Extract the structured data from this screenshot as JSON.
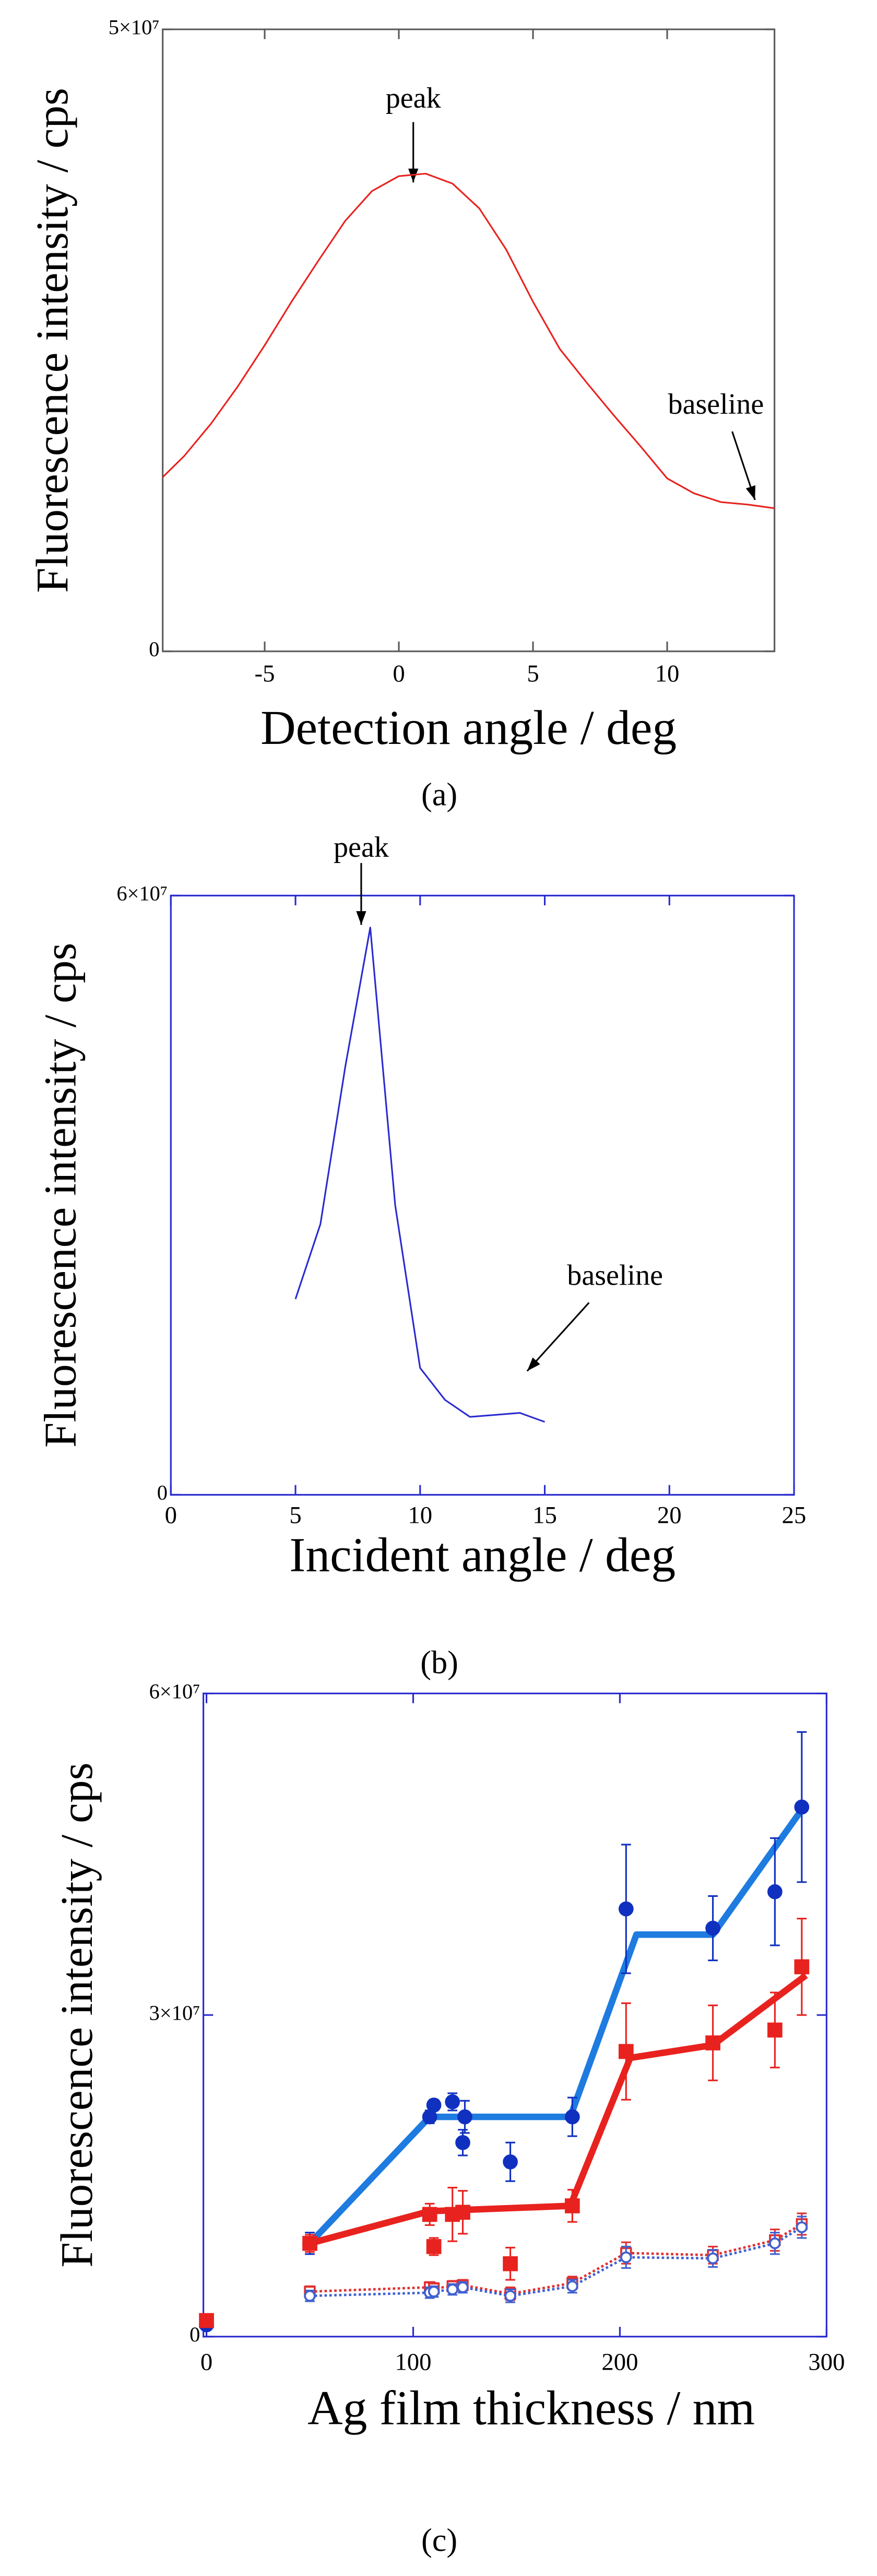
{
  "chart_data": [
    {
      "type": "line",
      "caption": "(a)",
      "x_label": "Detection angle / deg",
      "y_label": "Fluorescence intensity / cps",
      "annotations": [
        "peak",
        "baseline"
      ],
      "xlim": [
        -8.8,
        14
      ],
      "xticks": [
        -5,
        0,
        5,
        10
      ],
      "ylim": [
        0,
        50000000
      ],
      "yticks": [
        0,
        {
          "value": 50000000,
          "label": "5×10⁷"
        }
      ],
      "series": [
        {
          "color": "#e8221e",
          "line": "solid",
          "marker": null,
          "x": [
            -8.8,
            -8,
            -7,
            -6,
            -5,
            -4,
            -3,
            -2,
            -1,
            0,
            1,
            2,
            3,
            4,
            5,
            6,
            7,
            8,
            9,
            10,
            11,
            12,
            13,
            14
          ],
          "values": [
            14000000,
            15700000,
            18300000,
            21300000,
            24600000,
            28100000,
            31400000,
            34600000,
            37000000,
            38200000,
            38400000,
            37600000,
            35600000,
            32300000,
            28100000,
            24300000,
            21600000,
            19000000,
            16500000,
            13900000,
            12700000,
            12000000,
            11800000,
            11500000
          ]
        }
      ]
    },
    {
      "type": "line",
      "caption": "(b)",
      "x_label": "Incident angle / deg",
      "y_label": "Fluorescence intensity / cps",
      "annotations": [
        "peak",
        "baseline"
      ],
      "xlim": [
        0,
        25
      ],
      "xticks": [
        0,
        5,
        10,
        15,
        20,
        25
      ],
      "ylim": [
        0,
        60000000
      ],
      "yticks": [
        0,
        {
          "value": 60000000,
          "label": "6×10⁷"
        }
      ],
      "series": [
        {
          "color": "#2a2ad0",
          "line": "solid",
          "marker": null,
          "x": [
            5,
            6,
            7,
            8,
            9,
            10,
            11,
            12,
            13,
            14,
            15
          ],
          "values": [
            19600000,
            27100000,
            42900000,
            56800000,
            29000000,
            12700000,
            9500000,
            7800000,
            8000000,
            8200000,
            7300000
          ]
        }
      ]
    },
    {
      "type": "line",
      "caption": "(c)",
      "x_label": "Ag film thickness / nm",
      "y_label": "Fluorescence intensity / cps",
      "xlim": [
        -1.5,
        300
      ],
      "xticks": [
        0,
        100,
        200,
        300
      ],
      "ylim": [
        0,
        60000000
      ],
      "yticks": [
        0,
        {
          "value": 30000000,
          "label": "3×10⁷"
        },
        {
          "value": 60000000,
          "label": "6×10⁷"
        }
      ],
      "series": [
        {
          "color": "#1e7be0",
          "line": "solid",
          "marker": null,
          "x": [
            50,
            108,
            176,
            208,
            245,
            290
          ],
          "values": [
            8700000,
            20500000,
            20500000,
            37500000,
            37500000,
            49700000
          ]
        },
        {
          "color": "#e8221e",
          "line": "solid",
          "marker": null,
          "x": [
            50,
            108,
            176,
            205,
            245,
            290
          ],
          "values": [
            8700000,
            11700000,
            12200000,
            26000000,
            27200000,
            33700000
          ]
        },
        {
          "color": "#1030c0",
          "line": null,
          "marker": "circle",
          "x": [
            0,
            50,
            108,
            110,
            119,
            124,
            125,
            147,
            177,
            203,
            245,
            275,
            288
          ],
          "values": [
            1100000,
            8700000,
            20500000,
            21600000,
            21900000,
            18100000,
            20500000,
            16300000,
            20500000,
            39900000,
            38100000,
            41500000,
            49400000
          ],
          "errors": [
            null,
            1000000,
            600000,
            500000,
            800000,
            1200000,
            1500000,
            1800000,
            1800000,
            6000000,
            3000000,
            5000000,
            7000000
          ]
        },
        {
          "color": "#e8221e",
          "line": null,
          "marker": "square",
          "x": [
            0,
            50,
            108,
            110,
            119,
            124,
            147,
            177,
            203,
            245,
            275,
            288
          ],
          "values": [
            1500000,
            8700000,
            11400000,
            8400000,
            11400000,
            11600000,
            6800000,
            12200000,
            26600000,
            27400000,
            28600000,
            34500000
          ],
          "errors": [
            null,
            800000,
            1000000,
            800000,
            2500000,
            2000000,
            1500000,
            1500000,
            4500000,
            3500000,
            3500000,
            4500000
          ]
        },
        {
          "color": "#e03030",
          "line": "dotted",
          "marker": "open-square",
          "x": [
            50,
            108,
            110,
            119,
            124,
            147,
            177,
            203,
            245,
            275,
            288
          ],
          "values": [
            4200000,
            4600000,
            4500000,
            4700000,
            4800000,
            4000000,
            5000000,
            7800000,
            7600000,
            9000000,
            10500000
          ],
          "errors": [
            500000,
            500000,
            500000,
            500000,
            500000,
            600000,
            600000,
            1000000,
            800000,
            1000000,
            1000000
          ]
        },
        {
          "color": "#4060d0",
          "line": "dotted",
          "marker": "open-circle",
          "x": [
            50,
            108,
            110,
            119,
            124,
            147,
            177,
            203,
            245,
            275,
            288
          ],
          "values": [
            3800000,
            4100000,
            4200000,
            4400000,
            4600000,
            3800000,
            4700000,
            7400000,
            7300000,
            8700000,
            10200000
          ],
          "errors": [
            500000,
            500000,
            500000,
            500000,
            500000,
            600000,
            600000,
            1000000,
            800000,
            1000000,
            1000000
          ]
        }
      ]
    }
  ]
}
